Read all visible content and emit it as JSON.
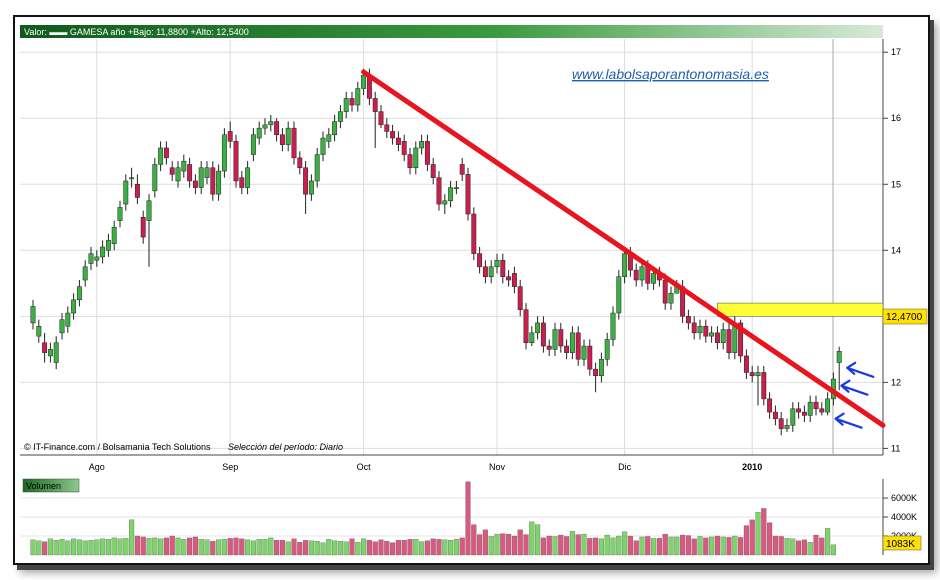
{
  "header": {
    "text": "Valor: ▬▬ GAMESA  año +Bajo: 11,8800 +Alto: 12,5400"
  },
  "credits": {
    "source": "© IT-Finance.com / Bolsamania Tech Solutions",
    "period": "Selección del período: Diario"
  },
  "watermark": "www.labolsaporantonomasia.es",
  "price_label": "12,4700",
  "volume_panel": {
    "title": "Volumen",
    "current_label": "1083K"
  },
  "colors": {
    "up": "#3cb043",
    "down": "#c8204e",
    "trendline": "#e8141e",
    "resistance": "#ffff33",
    "arrows": "#1a3ae0",
    "header": "#2e7d32",
    "volume_up": "#7ed36b",
    "volume_down": "#d95a80"
  },
  "chart_data": [
    {
      "type": "candlestick",
      "title": "GAMESA",
      "xlabel": "",
      "ylabel": "",
      "ylim": [
        10.9,
        17.2
      ],
      "yticks": [
        11,
        12,
        13,
        14,
        15,
        16,
        17
      ],
      "x_month_labels": [
        "Ago",
        "Sep",
        "Oct",
        "Nov",
        "Dic",
        "2010"
      ],
      "x_month_positions": [
        11,
        34,
        57,
        80,
        102,
        124
      ],
      "close": [
        13.15,
        12.85,
        12.45,
        12.5,
        12.6,
        12.95,
        13.05,
        13.25,
        13.45,
        13.75,
        13.95,
        13.9,
        14.05,
        14.15,
        14.35,
        14.65,
        15.05,
        15.1,
        14.8,
        14.2,
        14.75,
        15.3,
        15.55,
        15.4,
        15.15,
        15.25,
        15.35,
        15.05,
        14.95,
        15.25,
        15.25,
        14.85,
        15.2,
        15.75,
        15.65,
        15.05,
        14.95,
        15.25,
        15.75,
        15.85,
        15.9,
        15.95,
        15.75,
        15.6,
        15.85,
        15.4,
        15.25,
        14.85,
        15.05,
        15.45,
        15.7,
        15.75,
        15.95,
        16.1,
        16.3,
        16.2,
        16.45,
        16.65,
        16.3,
        16.1,
        15.9,
        15.8,
        15.7,
        15.6,
        15.45,
        15.25,
        15.55,
        15.65,
        15.3,
        15.1,
        14.7,
        14.75,
        14.95,
        14.95,
        15.15,
        14.55,
        13.95,
        13.75,
        13.6,
        13.75,
        13.85,
        13.6,
        13.55,
        13.45,
        13.1,
        12.6,
        12.75,
        12.9,
        12.55,
        12.5,
        12.8,
        12.55,
        12.45,
        12.75,
        12.35,
        12.55,
        12.2,
        12.1,
        12.35,
        12.65,
        13.05,
        13.6,
        13.95,
        13.7,
        13.55,
        13.75,
        13.5,
        13.65,
        13.55,
        13.2,
        13.35,
        13.45,
        13.0,
        12.9,
        12.75,
        12.85,
        12.7,
        12.75,
        12.6,
        12.8,
        12.45,
        12.9,
        12.4,
        12.15,
        12.1,
        12.15,
        11.75,
        11.55,
        11.45,
        11.3,
        11.35,
        11.6,
        11.55,
        11.5,
        11.7,
        11.6,
        11.55,
        11.75,
        12.05,
        12.47
      ],
      "open": [
        12.9,
        12.7,
        12.6,
        12.4,
        12.3,
        12.75,
        12.85,
        13.05,
        13.25,
        13.55,
        13.8,
        13.85,
        13.9,
        14.0,
        14.1,
        14.45,
        14.7,
        15.1,
        15.0,
        14.5,
        14.45,
        14.9,
        15.3,
        15.55,
        15.25,
        15.05,
        15.2,
        15.3,
        15.05,
        14.95,
        15.1,
        15.25,
        14.85,
        15.2,
        15.8,
        15.65,
        15.1,
        14.95,
        15.45,
        15.7,
        15.85,
        15.9,
        15.95,
        15.75,
        15.6,
        15.85,
        15.4,
        15.25,
        14.85,
        15.05,
        15.45,
        15.65,
        15.75,
        15.95,
        16.1,
        16.3,
        16.2,
        16.45,
        16.65,
        16.3,
        16.1,
        15.9,
        15.8,
        15.7,
        15.65,
        15.45,
        15.25,
        15.55,
        15.65,
        15.3,
        15.1,
        14.7,
        14.75,
        14.95,
        15.3,
        15.15,
        14.55,
        13.95,
        13.75,
        13.6,
        13.75,
        13.85,
        13.6,
        13.65,
        13.45,
        13.1,
        12.6,
        12.75,
        12.9,
        12.55,
        12.5,
        12.8,
        12.55,
        12.45,
        12.75,
        12.35,
        12.55,
        12.2,
        12.1,
        12.35,
        12.65,
        13.05,
        13.6,
        13.95,
        13.7,
        13.55,
        13.75,
        13.5,
        13.65,
        13.55,
        13.2,
        13.35,
        13.45,
        13.0,
        12.9,
        12.75,
        12.85,
        12.7,
        12.75,
        12.6,
        12.8,
        12.45,
        12.9,
        12.4,
        12.15,
        12.1,
        12.15,
        11.75,
        11.55,
        11.45,
        11.3,
        11.35,
        11.6,
        11.55,
        11.5,
        11.7,
        11.6,
        11.55,
        11.75,
        12.3
      ],
      "high": [
        13.25,
        12.95,
        12.75,
        12.6,
        12.7,
        13.05,
        13.15,
        13.35,
        13.55,
        13.85,
        14.05,
        14.0,
        14.15,
        14.25,
        14.45,
        14.75,
        15.15,
        15.25,
        15.15,
        14.6,
        14.85,
        15.4,
        15.65,
        15.65,
        15.35,
        15.35,
        15.45,
        15.4,
        15.15,
        15.35,
        15.35,
        15.35,
        15.3,
        15.85,
        15.95,
        15.75,
        15.2,
        15.35,
        15.85,
        15.95,
        16.0,
        16.05,
        16.0,
        15.85,
        15.95,
        15.95,
        15.5,
        15.35,
        15.15,
        15.55,
        15.8,
        15.85,
        16.05,
        16.2,
        16.4,
        16.4,
        16.55,
        16.75,
        16.75,
        16.4,
        16.2,
        16.0,
        15.9,
        15.8,
        15.75,
        15.55,
        15.65,
        15.75,
        15.75,
        15.4,
        15.2,
        14.85,
        15.05,
        15.05,
        15.4,
        15.25,
        14.65,
        14.05,
        13.85,
        13.85,
        13.95,
        13.95,
        13.7,
        13.75,
        13.55,
        13.2,
        12.85,
        13.0,
        13.0,
        12.65,
        12.9,
        12.9,
        12.65,
        12.85,
        12.85,
        12.65,
        12.65,
        12.3,
        12.45,
        12.75,
        13.15,
        13.7,
        14.05,
        14.05,
        13.8,
        13.85,
        13.85,
        13.75,
        13.75,
        13.65,
        13.45,
        13.55,
        13.55,
        13.1,
        13.0,
        12.95,
        12.95,
        12.85,
        12.85,
        12.9,
        12.9,
        13.0,
        12.95,
        12.5,
        12.25,
        12.25,
        12.25,
        11.85,
        11.65,
        11.55,
        11.45,
        11.7,
        11.7,
        11.65,
        11.8,
        11.8,
        11.7,
        11.85,
        12.15,
        12.54
      ],
      "low": [
        12.8,
        12.6,
        12.3,
        12.3,
        12.2,
        12.65,
        12.75,
        12.95,
        13.15,
        13.45,
        13.7,
        13.75,
        13.8,
        13.9,
        14.0,
        14.35,
        14.6,
        14.95,
        14.7,
        14.1,
        13.75,
        14.8,
        15.2,
        15.3,
        15.05,
        14.95,
        15.1,
        14.95,
        14.85,
        14.85,
        15.0,
        14.75,
        14.75,
        15.1,
        15.55,
        14.95,
        14.85,
        14.85,
        15.35,
        15.6,
        15.75,
        15.8,
        15.65,
        15.5,
        15.5,
        15.3,
        15.15,
        14.55,
        14.75,
        14.95,
        15.35,
        15.55,
        15.65,
        15.85,
        16.0,
        16.1,
        16.1,
        16.35,
        16.2,
        15.55,
        15.85,
        15.7,
        15.6,
        15.5,
        15.35,
        15.15,
        15.15,
        15.45,
        15.2,
        15.0,
        14.6,
        14.55,
        14.65,
        14.85,
        15.05,
        14.45,
        13.85,
        13.65,
        13.5,
        13.5,
        13.65,
        13.5,
        13.45,
        13.35,
        13.0,
        12.5,
        12.55,
        12.65,
        12.45,
        12.4,
        12.4,
        12.45,
        12.35,
        12.35,
        12.25,
        12.25,
        12.1,
        11.85,
        12.0,
        12.25,
        12.55,
        12.95,
        13.5,
        13.6,
        13.45,
        13.45,
        13.4,
        13.4,
        13.45,
        13.1,
        13.1,
        13.35,
        12.9,
        12.8,
        12.65,
        12.65,
        12.6,
        12.6,
        12.5,
        12.5,
        12.35,
        12.35,
        12.3,
        12.05,
        12.0,
        11.65,
        11.65,
        11.45,
        11.35,
        11.2,
        11.25,
        11.25,
        11.45,
        11.4,
        11.4,
        11.5,
        11.5,
        11.5,
        11.65,
        11.88
      ],
      "volume_k": [
        1600,
        1500,
        1400,
        1700,
        1550,
        1650,
        1500,
        1700,
        1600,
        1500,
        1550,
        1600,
        1700,
        1650,
        1800,
        1700,
        1750,
        3700,
        2000,
        1900,
        1750,
        1800,
        1700,
        1800,
        2000,
        1800,
        1650,
        1800,
        1900,
        1650,
        1600,
        1450,
        1600,
        1650,
        1750,
        1800,
        1700,
        1600,
        1500,
        1650,
        1650,
        1800,
        1550,
        1550,
        1400,
        1700,
        1350,
        1550,
        1500,
        1450,
        1300,
        1650,
        1500,
        1450,
        1400,
        1700,
        1350,
        1700,
        1550,
        1400,
        1600,
        1450,
        1300,
        1550,
        1550,
        1650,
        1650,
        1400,
        1500,
        1700,
        1650,
        1600,
        1550,
        1650,
        1800,
        7700,
        3200,
        2150,
        2650,
        1950,
        2200,
        2250,
        2200,
        2000,
        2650,
        2150,
        3500,
        3200,
        1800,
        2000,
        1950,
        2100,
        1950,
        2500,
        2150,
        2200,
        1750,
        1800,
        1700,
        2100,
        1800,
        2000,
        2450,
        2000,
        1500,
        1900,
        1950,
        1750,
        1750,
        2200,
        1900,
        1900,
        2100,
        2050,
        1700,
        1950,
        1800,
        1900,
        2000,
        1900,
        1850,
        2000,
        1850,
        3100,
        3700,
        4500,
        4900,
        3400,
        2000,
        1950,
        1750,
        1700,
        1500,
        1600,
        1350,
        2100,
        1800,
        2800,
        1083
      ],
      "trendline": {
        "from_index": 57,
        "from_value": 16.7,
        "to_index": 139,
        "to_value": 11.8
      },
      "resistance_zone": [
        13.0,
        13.2
      ]
    }
  ]
}
